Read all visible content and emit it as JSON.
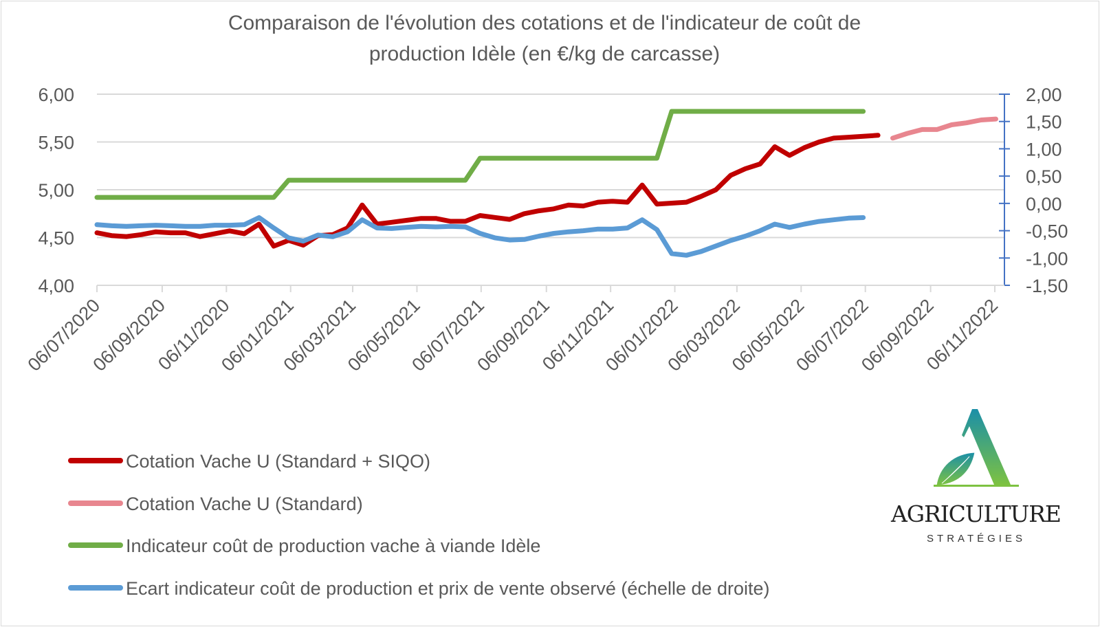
{
  "chart_data": {
    "type": "line",
    "title": [
      "Comparaison de l'évolution des cotations et de l'indicateur de coût de",
      "production Idèle (en  €/kg de carcasse)"
    ],
    "xlabel": "",
    "ylabel": "",
    "y_left": {
      "range": [
        4.0,
        6.0
      ],
      "ticks": [
        "6,00",
        "5,50",
        "5,00",
        "4,50",
        "4,00"
      ],
      "tick_values": [
        6.0,
        5.5,
        5.0,
        4.5,
        4.0
      ]
    },
    "y_right": {
      "range": [
        -1.5,
        2.0
      ],
      "ticks": [
        "2,00",
        "1,50",
        "1,00",
        "0,50",
        "0,00",
        "-0,50",
        "-1,00",
        "-1,50"
      ],
      "tick_values": [
        2.0,
        1.5,
        1.0,
        0.5,
        0.0,
        -0.5,
        -1.0,
        -1.5
      ],
      "axis_color": "#4472C4"
    },
    "x_ticks": [
      "06/07/2020",
      "06/09/2020",
      "06/11/2020",
      "06/01/2021",
      "06/03/2021",
      "06/05/2021",
      "06/07/2021",
      "06/09/2021",
      "06/11/2021",
      "06/01/2022",
      "06/03/2022",
      "06/05/2022",
      "06/07/2022",
      "06/09/2022",
      "06/11/2022"
    ],
    "grid": "horizontal",
    "legend_position": "bottom-left",
    "x": [
      "2020-07-06",
      "2020-07-20",
      "2020-08-03",
      "2020-08-17",
      "2020-08-31",
      "2020-09-14",
      "2020-09-28",
      "2020-10-12",
      "2020-10-26",
      "2020-11-09",
      "2020-11-23",
      "2020-12-07",
      "2020-12-21",
      "2021-01-04",
      "2021-01-18",
      "2021-02-01",
      "2021-02-15",
      "2021-03-01",
      "2021-03-15",
      "2021-03-29",
      "2021-04-12",
      "2021-04-26",
      "2021-05-10",
      "2021-05-24",
      "2021-06-07",
      "2021-06-21",
      "2021-07-05",
      "2021-07-19",
      "2021-08-02",
      "2021-08-16",
      "2021-08-30",
      "2021-09-13",
      "2021-09-27",
      "2021-10-11",
      "2021-10-25",
      "2021-11-08",
      "2021-11-22",
      "2021-12-06",
      "2021-12-20",
      "2022-01-03",
      "2022-01-17",
      "2022-01-31",
      "2022-02-14",
      "2022-02-28",
      "2022-03-14",
      "2022-03-28",
      "2022-04-11",
      "2022-04-25",
      "2022-05-09",
      "2022-05-23",
      "2022-06-06",
      "2022-06-20",
      "2022-07-04",
      "2022-07-18",
      "2022-08-01",
      "2022-08-15",
      "2022-08-29",
      "2022-09-12",
      "2022-09-26",
      "2022-10-10",
      "2022-10-24",
      "2022-11-07"
    ],
    "series": [
      {
        "name": "Cotation Vache U (Standard + SIQO)",
        "axis": "left",
        "color": "#C00000",
        "values": [
          4.55,
          4.52,
          4.51,
          4.53,
          4.56,
          4.55,
          4.55,
          4.51,
          4.54,
          4.57,
          4.54,
          4.64,
          4.41,
          4.47,
          4.42,
          4.52,
          4.53,
          4.6,
          4.84,
          4.64,
          4.66,
          4.68,
          4.7,
          4.7,
          4.67,
          4.67,
          4.73,
          4.71,
          4.69,
          4.75,
          4.78,
          4.8,
          4.84,
          4.83,
          4.87,
          4.88,
          4.87,
          5.05,
          4.85,
          4.86,
          4.87,
          4.93,
          5.0,
          5.15,
          5.22,
          5.27,
          5.45,
          5.36,
          5.44,
          5.5,
          5.54,
          5.55,
          5.56,
          5.57,
          null,
          null,
          null,
          null,
          null,
          null,
          null,
          null
        ]
      },
      {
        "name": "Cotation Vache U (Standard)",
        "axis": "left",
        "color": "#E8868F",
        "values": [
          null,
          null,
          null,
          null,
          null,
          null,
          null,
          null,
          null,
          null,
          null,
          null,
          null,
          null,
          null,
          null,
          null,
          null,
          null,
          null,
          null,
          null,
          null,
          null,
          null,
          null,
          null,
          null,
          null,
          null,
          null,
          null,
          null,
          null,
          null,
          null,
          null,
          null,
          null,
          null,
          null,
          null,
          null,
          null,
          null,
          null,
          null,
          null,
          null,
          null,
          null,
          null,
          null,
          null,
          5.54,
          5.59,
          5.63,
          5.63,
          5.68,
          5.7,
          5.73,
          5.74
        ]
      },
      {
        "name": "Indicateur coût de production vache à viande Idèle",
        "axis": "left",
        "color": "#70AD47",
        "values": [
          4.92,
          4.92,
          4.92,
          4.92,
          4.92,
          4.92,
          4.92,
          4.92,
          4.92,
          4.92,
          4.92,
          4.92,
          4.92,
          5.1,
          5.1,
          5.1,
          5.1,
          5.1,
          5.1,
          5.1,
          5.1,
          5.1,
          5.1,
          5.1,
          5.1,
          5.1,
          5.33,
          5.33,
          5.33,
          5.33,
          5.33,
          5.33,
          5.33,
          5.33,
          5.33,
          5.33,
          5.33,
          5.33,
          5.33,
          5.82,
          5.82,
          5.82,
          5.82,
          5.82,
          5.82,
          5.82,
          5.82,
          5.82,
          5.82,
          5.82,
          5.82,
          5.82,
          5.82,
          null,
          null,
          null,
          null,
          null,
          null,
          null,
          null,
          null
        ]
      },
      {
        "name": "Ecart indicateur coût de production et prix de vente observé (échelle de droite)",
        "axis": "right",
        "color": "#5B9BD5",
        "values": [
          -0.39,
          -0.41,
          -0.42,
          -0.41,
          -0.4,
          -0.41,
          -0.42,
          -0.42,
          -0.4,
          -0.4,
          -0.39,
          -0.26,
          -0.45,
          -0.63,
          -0.69,
          -0.58,
          -0.61,
          -0.52,
          -0.3,
          -0.45,
          -0.46,
          -0.44,
          -0.42,
          -0.43,
          -0.42,
          -0.43,
          -0.55,
          -0.63,
          -0.67,
          -0.66,
          -0.6,
          -0.55,
          -0.52,
          -0.5,
          -0.47,
          -0.47,
          -0.45,
          -0.3,
          -0.48,
          -0.92,
          -0.95,
          -0.88,
          -0.78,
          -0.68,
          -0.6,
          -0.5,
          -0.38,
          -0.44,
          -0.38,
          -0.33,
          -0.3,
          -0.27,
          -0.26,
          null,
          null,
          null,
          null,
          null,
          null,
          null,
          null,
          null
        ]
      }
    ]
  },
  "logo": {
    "name": "AGRICULTURE",
    "tagline": "STRATÉGIES",
    "gradient": [
      "#1B8FA8",
      "#7DC241"
    ]
  }
}
